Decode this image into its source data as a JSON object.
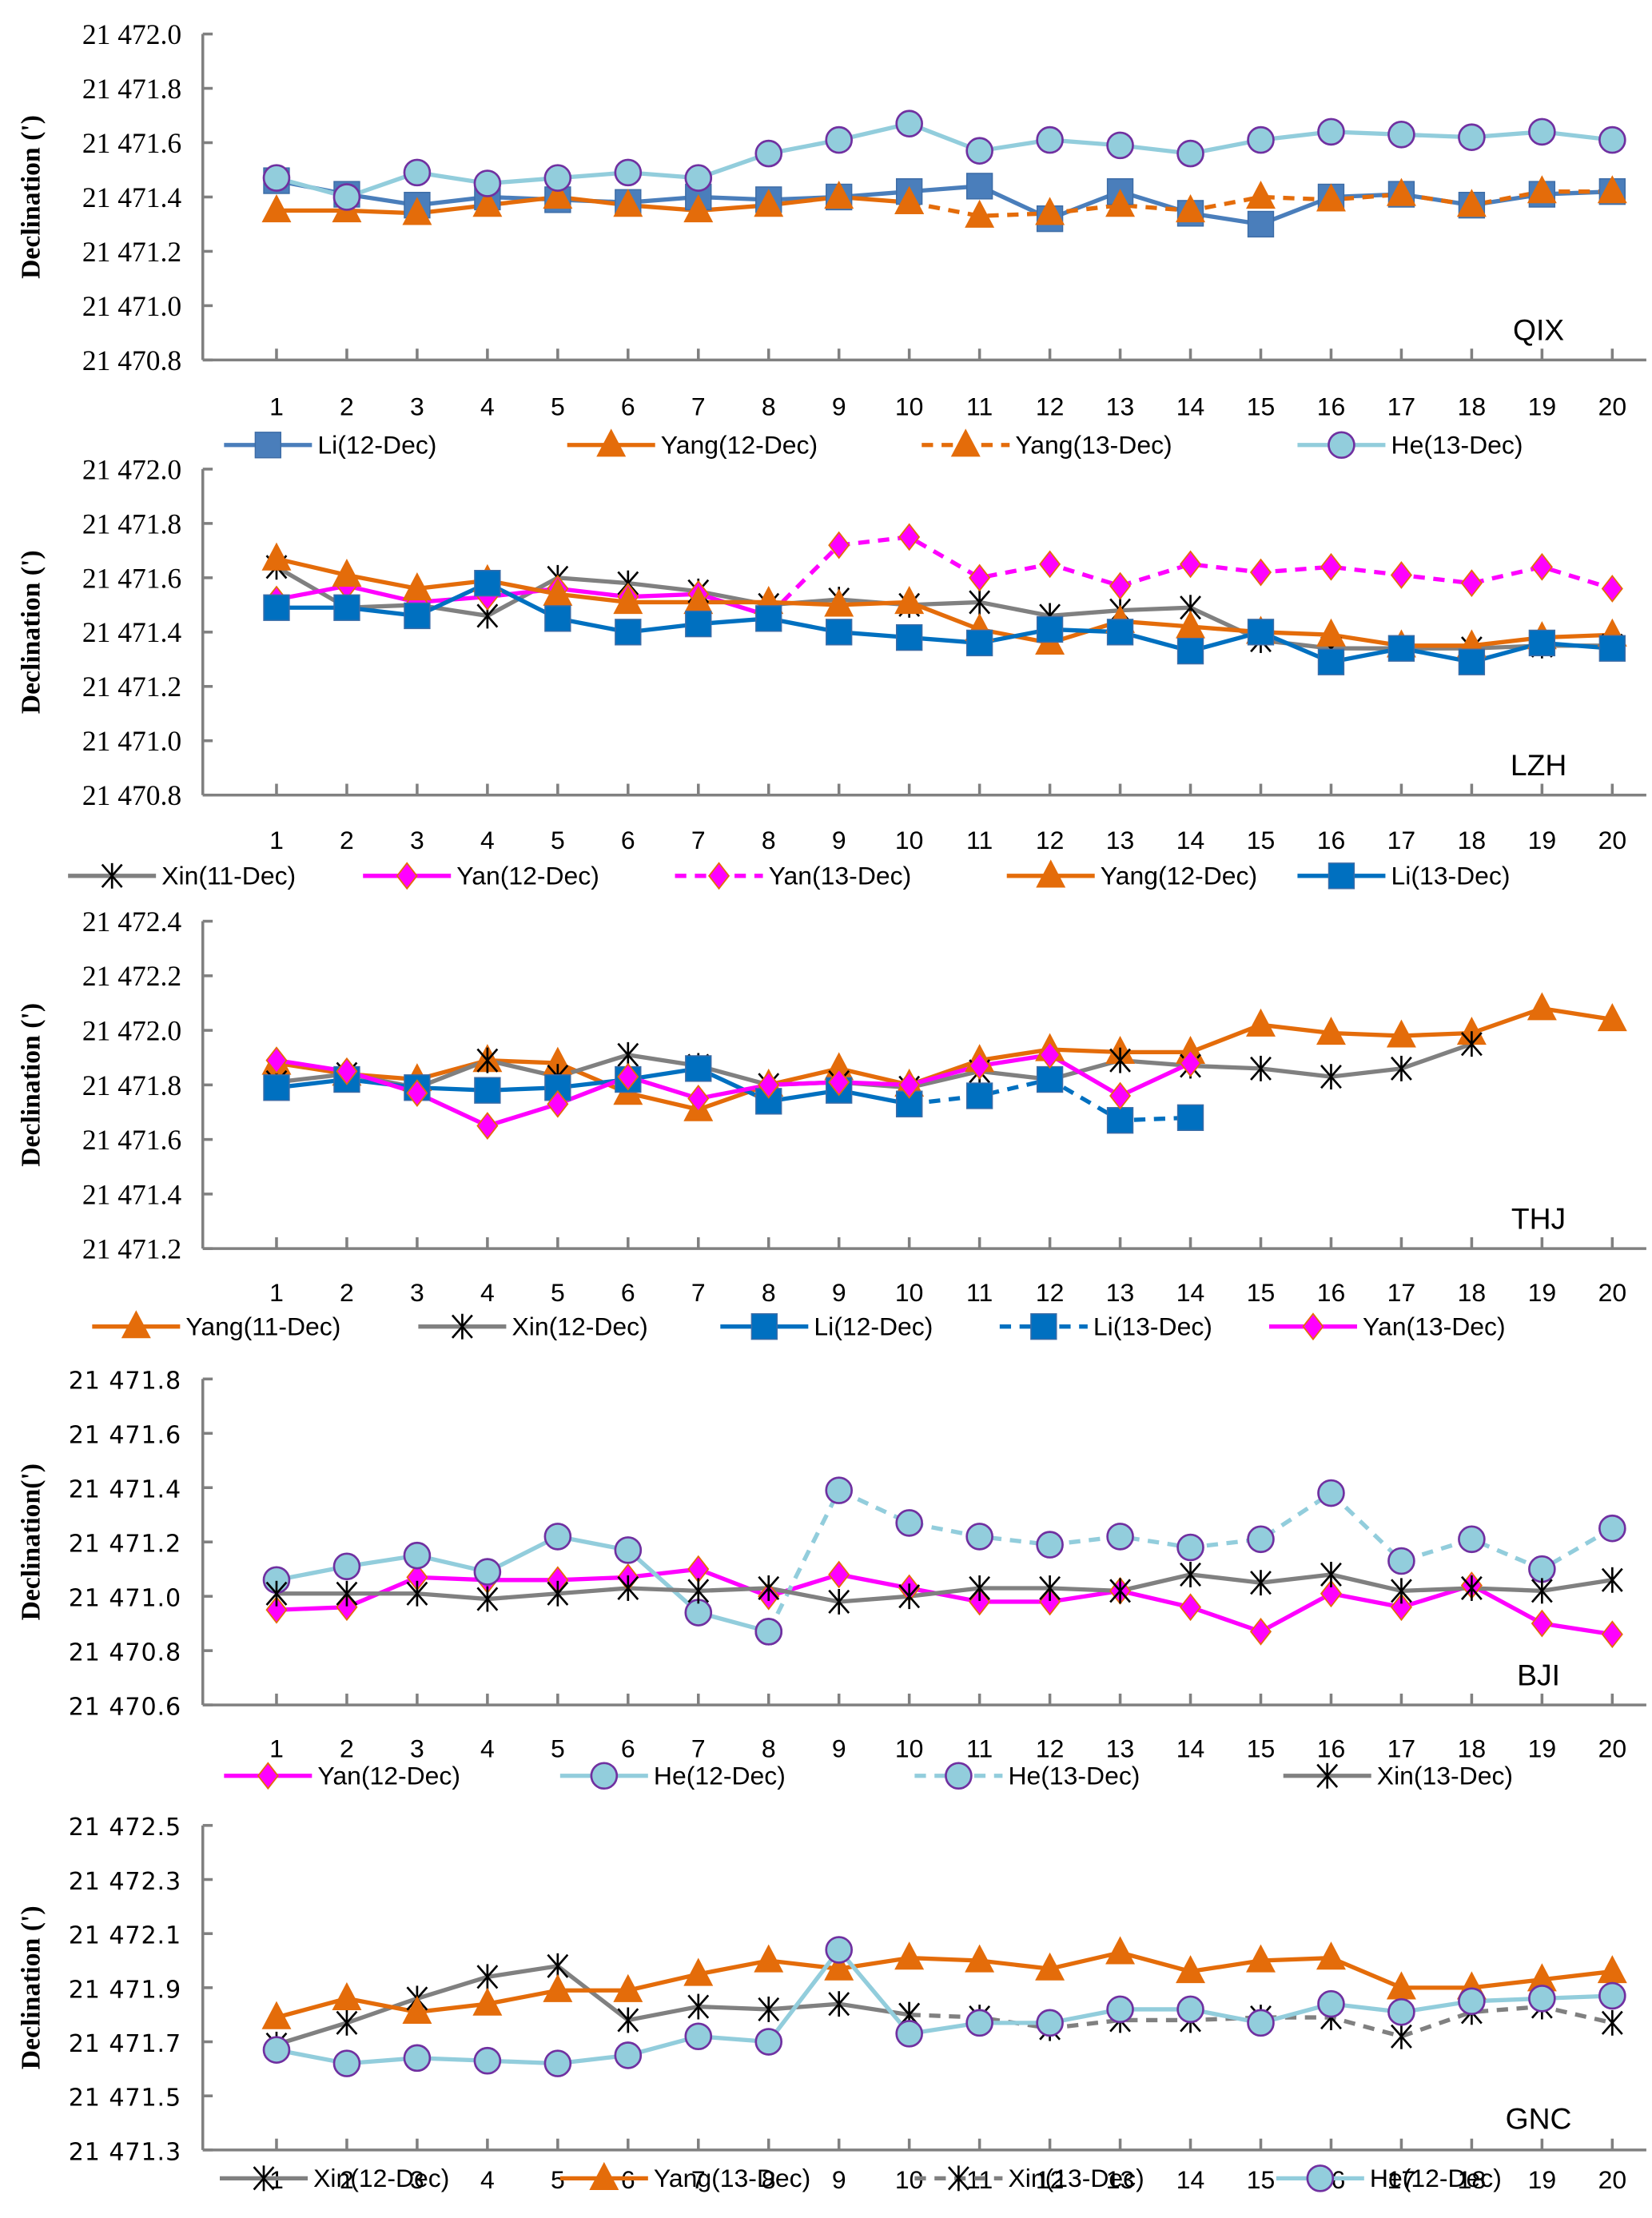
{
  "chart_data": [
    {
      "type": "line",
      "station": "QIX",
      "ylabel": "Declination (')",
      "xlabel": "",
      "ylim": [
        21470.8,
        21472.0
      ],
      "yticks": [
        "21 470.8",
        "21 471.0",
        "21 471.2",
        "21 471.4",
        "21 471.6",
        "21 471.8",
        "21 472.0"
      ],
      "ytick_values": [
        21470.8,
        21471.0,
        21471.2,
        21471.4,
        21471.6,
        21471.8,
        21472.0
      ],
      "x": [
        1,
        2,
        3,
        4,
        5,
        6,
        7,
        8,
        9,
        10,
        11,
        12,
        13,
        14,
        15,
        16,
        17,
        18,
        19,
        20
      ],
      "series": [
        {
          "name": "Li(12-Dec)",
          "marker": "square",
          "color": "#4a7ebb",
          "dash": false,
          "values": [
            21471.46,
            21471.41,
            21471.37,
            21471.4,
            21471.39,
            21471.38,
            21471.4,
            21471.39,
            21471.4,
            21471.42,
            21471.44,
            21471.32,
            21471.42,
            21471.34,
            21471.3,
            21471.4,
            21471.41,
            21471.37,
            21471.41,
            21471.42
          ]
        },
        {
          "name": "Yang(12-Dec)",
          "marker": "triangle",
          "color": "#e46c0a",
          "dash": false,
          "values": [
            21471.35,
            21471.35,
            21471.34,
            21471.37,
            21471.4,
            21471.37,
            21471.35,
            21471.37,
            21471.4,
            21471.38,
            null,
            null,
            null,
            null,
            null,
            null,
            null,
            null,
            null,
            null
          ]
        },
        {
          "name": "Yang(13-Dec)",
          "marker": "triangle",
          "color": "#e46c0a",
          "dash": true,
          "values": [
            null,
            null,
            null,
            null,
            null,
            null,
            null,
            null,
            null,
            21471.38,
            21471.33,
            21471.34,
            21471.37,
            21471.35,
            21471.4,
            21471.39,
            21471.41,
            21471.37,
            21471.42,
            21471.42
          ]
        },
        {
          "name": "He(13-Dec)",
          "marker": "circle",
          "color": "#92cddc",
          "dash": false,
          "values": [
            21471.47,
            21471.4,
            21471.49,
            21471.45,
            21471.47,
            21471.49,
            21471.47,
            21471.56,
            21471.61,
            21471.67,
            21471.57,
            21471.61,
            21471.59,
            21471.56,
            21471.61,
            21471.64,
            21471.63,
            21471.62,
            21471.64,
            21471.61
          ]
        }
      ]
    },
    {
      "type": "line",
      "station": "LZH",
      "ylabel": "Declination (')",
      "xlabel": "",
      "ylim": [
        21470.8,
        21472.0
      ],
      "yticks": [
        "21 470.8",
        "21 471.0",
        "21 471.2",
        "21 471.4",
        "21 471.6",
        "21 471.8",
        "21 472.0"
      ],
      "ytick_values": [
        21470.8,
        21471.0,
        21471.2,
        21471.4,
        21471.6,
        21471.8,
        21472.0
      ],
      "x": [
        1,
        2,
        3,
        4,
        5,
        6,
        7,
        8,
        9,
        10,
        11,
        12,
        13,
        14,
        15,
        16,
        17,
        18,
        19,
        20
      ],
      "series": [
        {
          "name": "Xin(11-Dec)",
          "marker": "star",
          "color": "#808080",
          "dash": false,
          "values": [
            21471.64,
            21471.49,
            21471.5,
            21471.46,
            21471.6,
            21471.58,
            21471.55,
            21471.5,
            21471.52,
            21471.5,
            21471.51,
            21471.46,
            21471.48,
            21471.49,
            21471.37,
            21471.34,
            21471.34,
            21471.34,
            21471.35,
            21471.35
          ]
        },
        {
          "name": "Yan(12-Dec)",
          "marker": "diamond",
          "color": "#ff00ff",
          "dash": false,
          "values": [
            21471.52,
            21471.57,
            21471.51,
            21471.53,
            21471.56,
            21471.53,
            21471.54,
            21471.46,
            null,
            null,
            null,
            null,
            null,
            null,
            null,
            null,
            null,
            null,
            null,
            null
          ]
        },
        {
          "name": "Yan(13-Dec)",
          "marker": "diamond",
          "color": "#ff00ff",
          "dash": true,
          "values": [
            null,
            null,
            null,
            null,
            null,
            null,
            null,
            21471.46,
            21471.72,
            21471.75,
            21471.6,
            21471.65,
            21471.57,
            21471.65,
            21471.62,
            21471.64,
            21471.61,
            21471.58,
            21471.64,
            21471.56
          ]
        },
        {
          "name": "Yang(12-Dec)",
          "marker": "triangle",
          "color": "#e46c0a",
          "dash": false,
          "values": [
            21471.67,
            21471.61,
            21471.56,
            21471.59,
            21471.54,
            21471.51,
            21471.51,
            21471.51,
            21471.5,
            21471.51,
            21471.41,
            21471.36,
            21471.44,
            21471.42,
            21471.4,
            21471.39,
            21471.35,
            21471.35,
            21471.38,
            21471.39
          ]
        },
        {
          "name": "Li(13-Dec)",
          "marker": "square",
          "color": "#0070c0",
          "dash": false,
          "values": [
            21471.49,
            21471.49,
            21471.46,
            21471.58,
            21471.45,
            21471.4,
            21471.43,
            21471.45,
            21471.4,
            21471.38,
            21471.36,
            21471.41,
            21471.4,
            21471.33,
            21471.4,
            21471.29,
            21471.34,
            21471.29,
            21471.36,
            21471.34
          ]
        }
      ]
    },
    {
      "type": "line",
      "station": "THJ",
      "ylabel": "Declination (')",
      "xlabel": "",
      "ylim": [
        21471.2,
        21472.4
      ],
      "yticks": [
        "21 471.2",
        "21 471.4",
        "21 471.6",
        "21 471.8",
        "21 472.0",
        "21 472.2",
        "21 472.4"
      ],
      "ytick_values": [
        21471.2,
        21471.4,
        21471.6,
        21471.8,
        21472.0,
        21472.2,
        21472.4
      ],
      "x": [
        1,
        2,
        3,
        4,
        5,
        6,
        7,
        8,
        9,
        10,
        11,
        12,
        13,
        14,
        15,
        16,
        17,
        18,
        19,
        20
      ],
      "series": [
        {
          "name": "Yang(11-Dec)",
          "marker": "triangle",
          "color": "#e46c0a",
          "dash": false,
          "values": [
            21471.88,
            21471.84,
            21471.82,
            21471.89,
            21471.88,
            21471.77,
            21471.71,
            21471.8,
            21471.86,
            21471.8,
            21471.89,
            21471.93,
            21471.92,
            21471.92,
            21472.02,
            21471.99,
            21471.98,
            21471.99,
            21472.08,
            21472.04
          ]
        },
        {
          "name": "Xin(12-Dec)",
          "marker": "star",
          "color": "#808080",
          "dash": false,
          "values": [
            21471.81,
            21471.84,
            21471.79,
            21471.89,
            21471.83,
            21471.91,
            21471.87,
            21471.8,
            21471.81,
            21471.79,
            21471.85,
            21471.82,
            21471.89,
            21471.87,
            21471.86,
            21471.83,
            21471.86,
            21471.95,
            null,
            null
          ]
        },
        {
          "name": "Li(12-Dec)",
          "marker": "square",
          "color": "#0070c0",
          "dash": false,
          "values": [
            21471.79,
            21471.82,
            21471.79,
            21471.78,
            21471.79,
            21471.82,
            21471.86,
            21471.74,
            21471.78,
            21471.73,
            null,
            null,
            null,
            null,
            null,
            null,
            null,
            null,
            null,
            null
          ]
        },
        {
          "name": "Li(13-Dec)",
          "marker": "square",
          "color": "#0070c0",
          "dash": true,
          "values": [
            null,
            null,
            null,
            null,
            null,
            null,
            null,
            null,
            null,
            21471.73,
            21471.76,
            21471.82,
            21471.67,
            21471.68,
            null,
            null,
            null,
            null,
            null,
            null
          ]
        },
        {
          "name": "Yan(13-Dec)",
          "marker": "diamond",
          "color": "#ff00ff",
          "dash": false,
          "values": [
            21471.89,
            21471.85,
            21471.77,
            21471.65,
            21471.73,
            21471.83,
            21471.75,
            21471.8,
            21471.81,
            21471.8,
            21471.87,
            21471.91,
            21471.76,
            21471.88,
            null,
            null,
            null,
            null,
            null,
            null
          ]
        }
      ]
    },
    {
      "type": "line",
      "station": "BJI",
      "ylabel": "Declination(')",
      "xlabel": "",
      "ylim": [
        21470.6,
        21471.8
      ],
      "yticks": [
        "21 470.6",
        "21 470.8",
        "21 471.0",
        "21 471.2",
        "21 471.4",
        "21 471.6",
        "21 471.8"
      ],
      "ytick_values": [
        21470.6,
        21470.8,
        21471.0,
        21471.2,
        21471.4,
        21471.6,
        21471.8
      ],
      "x": [
        1,
        2,
        3,
        4,
        5,
        6,
        7,
        8,
        9,
        10,
        11,
        12,
        13,
        14,
        15,
        16,
        17,
        18,
        19,
        20
      ],
      "series": [
        {
          "name": "Yan(12-Dec)",
          "marker": "diamond",
          "color": "#ff00ff",
          "dash": false,
          "values": [
            21470.95,
            21470.96,
            21471.07,
            21471.06,
            21471.06,
            21471.07,
            21471.1,
            21471.0,
            21471.08,
            21471.03,
            21470.98,
            21470.98,
            21471.02,
            21470.96,
            21470.87,
            21471.01,
            21470.96,
            21471.04,
            21470.9,
            21470.86
          ]
        },
        {
          "name": "He(12-Dec)",
          "marker": "circle",
          "color": "#92cddc",
          "dash": false,
          "values": [
            21471.06,
            21471.11,
            21471.15,
            21471.09,
            21471.22,
            21471.17,
            21470.94,
            21470.87,
            null,
            null,
            null,
            null,
            null,
            null,
            null,
            null,
            null,
            null,
            null,
            null
          ]
        },
        {
          "name": "He(13-Dec)",
          "marker": "circle",
          "color": "#92cddc",
          "dash": true,
          "values": [
            null,
            null,
            null,
            null,
            null,
            null,
            null,
            21470.87,
            21471.39,
            21471.27,
            21471.22,
            21471.19,
            21471.22,
            21471.18,
            21471.21,
            21471.38,
            21471.13,
            21471.21,
            21471.1,
            21471.25
          ]
        },
        {
          "name": "Xin(13-Dec)",
          "marker": "star",
          "color": "#808080",
          "dash": false,
          "values": [
            21471.01,
            21471.01,
            21471.01,
            21470.99,
            21471.01,
            21471.03,
            21471.02,
            21471.03,
            21470.98,
            21471.0,
            21471.03,
            21471.03,
            21471.02,
            21471.08,
            21471.05,
            21471.08,
            21471.02,
            21471.03,
            21471.02,
            21471.06
          ]
        }
      ]
    },
    {
      "type": "line",
      "station": "GNC",
      "ylabel": "Declination (')",
      "xlabel": "",
      "ylim": [
        21471.3,
        21472.5
      ],
      "yticks": [
        "21 471.3",
        "21 471.5",
        "21 471.7",
        "21 471.9",
        "21 472.1",
        "21 472.3",
        "21 472.5"
      ],
      "ytick_values": [
        21471.3,
        21471.5,
        21471.7,
        21471.9,
        21472.1,
        21472.3,
        21472.5
      ],
      "x": [
        1,
        2,
        3,
        4,
        5,
        6,
        7,
        8,
        9,
        10,
        11,
        12,
        13,
        14,
        15,
        16,
        17,
        18,
        19,
        20
      ],
      "series": [
        {
          "name": "Xin(12-Dec)",
          "marker": "star",
          "color": "#808080",
          "dash": false,
          "values": [
            21471.69,
            21471.77,
            21471.86,
            21471.94,
            21471.98,
            21471.78,
            21471.83,
            21471.82,
            21471.84,
            21471.8,
            null,
            null,
            null,
            null,
            null,
            null,
            null,
            null,
            null,
            null
          ]
        },
        {
          "name": "Yang(13-Dec)",
          "marker": "triangle",
          "color": "#e46c0a",
          "dash": false,
          "values": [
            21471.79,
            21471.86,
            21471.81,
            21471.84,
            21471.89,
            21471.89,
            21471.95,
            21472.0,
            21471.97,
            21472.01,
            21472.0,
            21471.97,
            21472.03,
            21471.96,
            21472.0,
            21472.01,
            21471.9,
            21471.9,
            21471.93,
            21471.96
          ]
        },
        {
          "name": "Xin(13-Dec)",
          "marker": "star",
          "color": "#808080",
          "dash": true,
          "values": [
            null,
            null,
            null,
            null,
            null,
            null,
            null,
            null,
            null,
            21471.8,
            21471.79,
            21471.75,
            21471.78,
            21471.78,
            21471.79,
            21471.79,
            21471.72,
            21471.81,
            21471.83,
            21471.77
          ]
        },
        {
          "name": "He(12-Dec)",
          "marker": "circle",
          "color": "#92cddc",
          "dash": false,
          "values": [
            21471.67,
            21471.62,
            21471.64,
            21471.63,
            21471.62,
            21471.65,
            21471.72,
            21471.7,
            21472.04,
            21471.73,
            21471.77,
            21471.77,
            21471.82,
            21471.82,
            21471.77,
            21471.84,
            21471.81,
            21471.85,
            21471.86,
            21471.87
          ]
        }
      ]
    }
  ]
}
